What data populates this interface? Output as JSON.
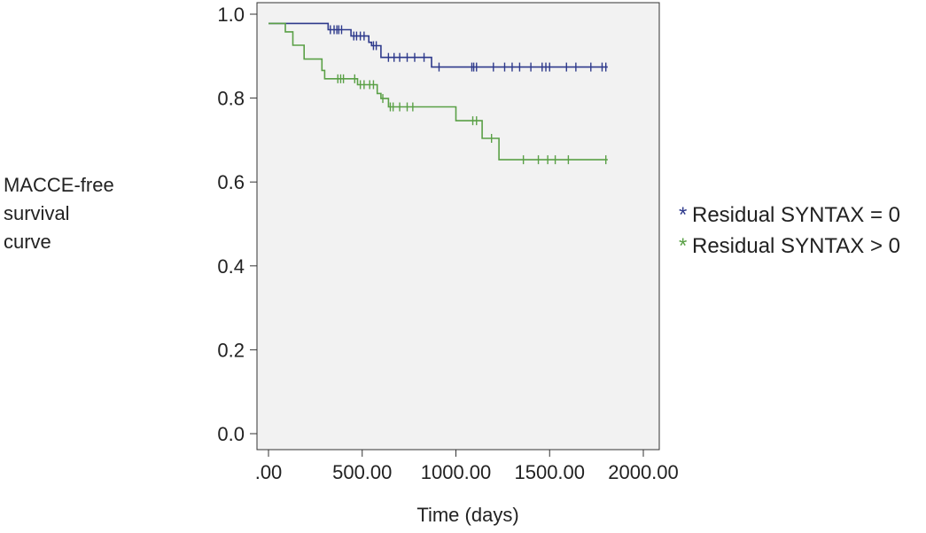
{
  "chart_data": {
    "type": "line",
    "subtype": "kaplan-meier",
    "title": "",
    "xlabel": "Time (days)",
    "ylabel_lines": [
      "MACCE-free",
      "survival",
      "curve"
    ],
    "xlim": [
      0,
      2000
    ],
    "ylim": [
      0,
      1.0
    ],
    "x_ticks": [
      0,
      500,
      1000,
      1500,
      2000
    ],
    "x_tick_labels": [
      ".00",
      "500.00",
      "1000.00",
      "1500.00",
      "2000.00"
    ],
    "y_ticks": [
      0,
      0.2,
      0.4,
      0.6,
      0.8,
      1.0
    ],
    "y_tick_labels": [
      "0.0",
      "0.2",
      "0.4",
      "0.6",
      "0.8",
      "1.0"
    ],
    "grid": false,
    "legend_position": "right",
    "plot_background": "#f2f2f2",
    "series": [
      {
        "name": "Residual SYNTAX = 0",
        "legend_marker": "*",
        "color": "#2e3a8c",
        "steps": [
          [
            0,
            0.978
          ],
          [
            318,
            0.963
          ],
          [
            440,
            0.948
          ],
          [
            535,
            0.933
          ],
          [
            550,
            0.925
          ],
          [
            600,
            0.897
          ],
          [
            870,
            0.874
          ],
          [
            1810,
            0.874
          ]
        ],
        "censored": [
          [
            330,
            0.963
          ],
          [
            350,
            0.963
          ],
          [
            365,
            0.963
          ],
          [
            375,
            0.963
          ],
          [
            390,
            0.963
          ],
          [
            455,
            0.948
          ],
          [
            470,
            0.948
          ],
          [
            490,
            0.948
          ],
          [
            510,
            0.948
          ],
          [
            560,
            0.925
          ],
          [
            575,
            0.925
          ],
          [
            640,
            0.897
          ],
          [
            670,
            0.897
          ],
          [
            700,
            0.897
          ],
          [
            740,
            0.897
          ],
          [
            780,
            0.897
          ],
          [
            830,
            0.897
          ],
          [
            910,
            0.874
          ],
          [
            1085,
            0.874
          ],
          [
            1095,
            0.874
          ],
          [
            1110,
            0.874
          ],
          [
            1200,
            0.874
          ],
          [
            1260,
            0.874
          ],
          [
            1300,
            0.874
          ],
          [
            1340,
            0.874
          ],
          [
            1400,
            0.874
          ],
          [
            1460,
            0.874
          ],
          [
            1480,
            0.874
          ],
          [
            1500,
            0.874
          ],
          [
            1590,
            0.874
          ],
          [
            1640,
            0.874
          ],
          [
            1720,
            0.874
          ],
          [
            1780,
            0.874
          ],
          [
            1800,
            0.874
          ]
        ]
      },
      {
        "name": "Residual SYNTAX > 0",
        "legend_marker": "*",
        "color": "#5aa046",
        "steps": [
          [
            0,
            0.978
          ],
          [
            90,
            0.958
          ],
          [
            130,
            0.926
          ],
          [
            190,
            0.893
          ],
          [
            285,
            0.866
          ],
          [
            300,
            0.846
          ],
          [
            475,
            0.832
          ],
          [
            580,
            0.811
          ],
          [
            600,
            0.799
          ],
          [
            640,
            0.779
          ],
          [
            1000,
            0.746
          ],
          [
            1140,
            0.704
          ],
          [
            1230,
            0.653
          ],
          [
            1810,
            0.653
          ]
        ],
        "censored": [
          [
            370,
            0.846
          ],
          [
            385,
            0.846
          ],
          [
            400,
            0.846
          ],
          [
            460,
            0.846
          ],
          [
            490,
            0.832
          ],
          [
            510,
            0.832
          ],
          [
            540,
            0.832
          ],
          [
            560,
            0.832
          ],
          [
            610,
            0.799
          ],
          [
            650,
            0.779
          ],
          [
            665,
            0.779
          ],
          [
            700,
            0.779
          ],
          [
            740,
            0.779
          ],
          [
            770,
            0.779
          ],
          [
            1090,
            0.746
          ],
          [
            1110,
            0.746
          ],
          [
            1190,
            0.704
          ],
          [
            1360,
            0.653
          ],
          [
            1440,
            0.653
          ],
          [
            1490,
            0.653
          ],
          [
            1530,
            0.653
          ],
          [
            1600,
            0.653
          ],
          [
            1800,
            0.653
          ]
        ]
      }
    ]
  }
}
